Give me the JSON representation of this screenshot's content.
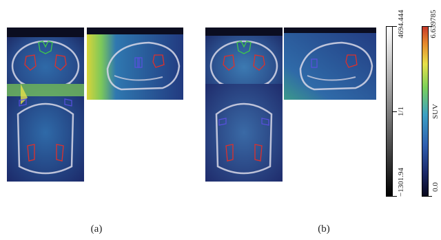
{
  "captions": {
    "a": "(a)",
    "b": "(b)"
  },
  "grayscale_bar": {
    "max": "4694.444",
    "mid": "1/1",
    "min": "−1301.94"
  },
  "color_bar": {
    "max": "6.639785",
    "label": "SUV",
    "min": "0.0"
  },
  "colors": {
    "roi_red": "#e0302a",
    "roi_green": "#3ec84a",
    "roi_blue": "#5a4fe0",
    "pet_dark": "#1c2a6a",
    "pet_cyan": "#3ca0c4",
    "pet_green": "#7ad05a",
    "pet_yellow": "#e6e04a"
  }
}
